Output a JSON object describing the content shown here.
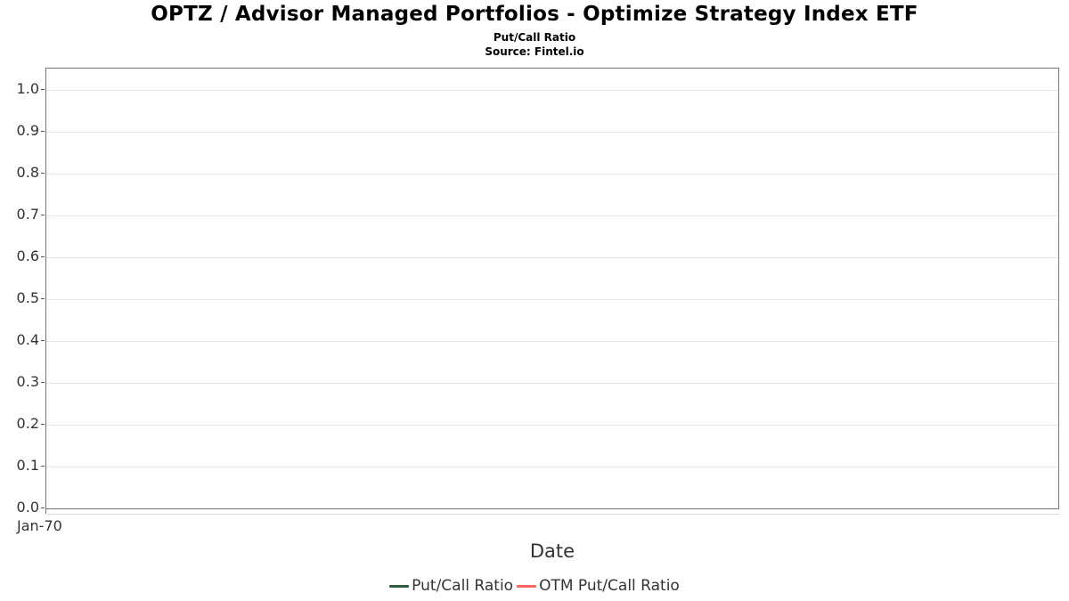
{
  "header": {
    "title": "OPTZ / Advisor Managed Portfolios - Optimize Strategy Index ETF",
    "subtitle": "Put/Call Ratio",
    "source": "Source: Fintel.io"
  },
  "chart_data": {
    "type": "line",
    "title": "OPTZ / Advisor Managed Portfolios - Optimize Strategy Index ETF",
    "subtitle": "Put/Call Ratio",
    "source": "Source: Fintel.io",
    "xlabel": "Date",
    "ylabel": "",
    "ylim": [
      0.0,
      1.05
    ],
    "yticks": [
      "0.0",
      "0.1",
      "0.2",
      "0.3",
      "0.4",
      "0.5",
      "0.6",
      "0.7",
      "0.8",
      "0.9",
      "1.0"
    ],
    "xticks": [
      "Jan-70"
    ],
    "grid": "horizontal",
    "legend_position": "bottom",
    "series": [
      {
        "name": "Put/Call Ratio",
        "color": "#2d5e3e",
        "x": [],
        "values": []
      },
      {
        "name": "OTM Put/Call Ratio",
        "color": "#f9665d",
        "x": [],
        "values": []
      }
    ]
  },
  "colors": {
    "plot_border": "#757575",
    "gridline": "#e7e7e7",
    "tick_text": "#333333"
  }
}
